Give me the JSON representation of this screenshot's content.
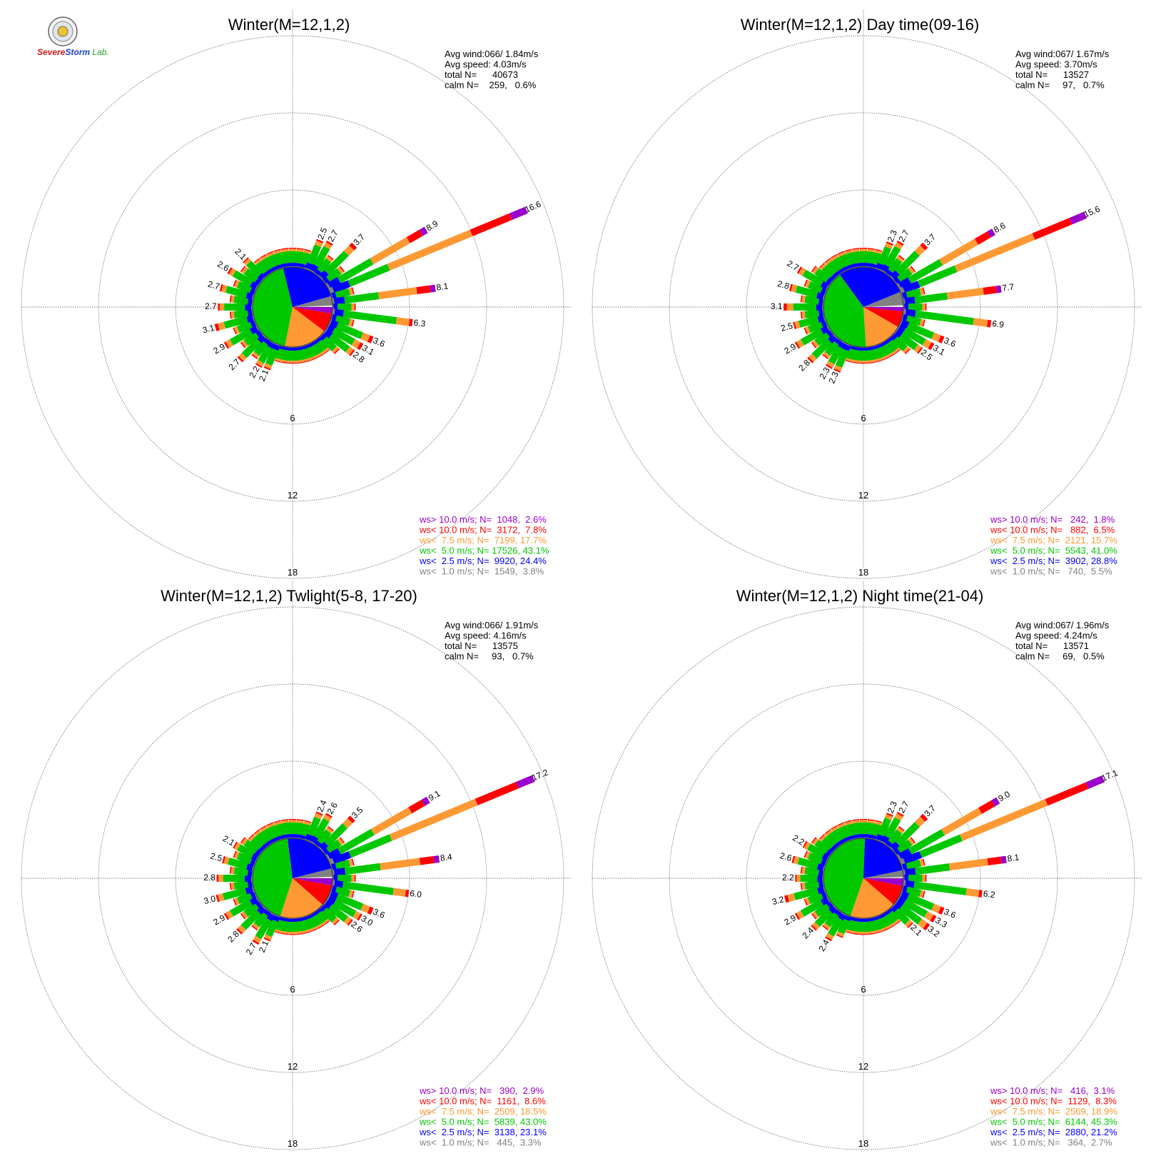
{
  "logo": {
    "name": "severe-storm-lab-logo",
    "text_parts": [
      "Severe",
      "Storm",
      "Lab."
    ]
  },
  "colors": {
    "ws_gt_10": "#9900cc",
    "ws_lt_10": "#ff0000",
    "ws_lt_7_5": "#ff9933",
    "ws_lt_5": "#00c800",
    "ws_lt_2_5": "#0000ff",
    "ws_lt_1": "#808080",
    "ring": "#555555"
  },
  "chart_data": [
    {
      "type": "wind-rose",
      "title": "Winter(M=12,1,2)",
      "stats": [
        "Avg wind:066/ 1.84m/s",
        "Avg speed: 4.03m/s",
        "total N=      40673",
        "calm N=    259,   0.6%"
      ],
      "ring_labels": [
        "6",
        "12",
        "18"
      ],
      "petal_labels": [
        {
          "dir": 22.5,
          "value": "2.5"
        },
        {
          "dir": 30,
          "value": "2.7"
        },
        {
          "dir": 45,
          "value": "3.7"
        },
        {
          "dir": 60,
          "value": "8.9"
        },
        {
          "dir": 67.5,
          "value": "16.6"
        },
        {
          "dir": 82.5,
          "value": "8.1"
        },
        {
          "dir": 97.5,
          "value": "6.3"
        },
        {
          "dir": 112.5,
          "value": "3.6"
        },
        {
          "dir": 120,
          "value": "3.1"
        },
        {
          "dir": 127.5,
          "value": "2.8"
        },
        {
          "dir": 202.5,
          "value": "2.1"
        },
        {
          "dir": 210,
          "value": "2.2"
        },
        {
          "dir": 225,
          "value": "2.7"
        },
        {
          "dir": 240,
          "value": "2.9"
        },
        {
          "dir": 255,
          "value": "3.1"
        },
        {
          "dir": 270,
          "value": "2.7"
        },
        {
          "dir": 285,
          "value": "2.7"
        },
        {
          "dir": 300,
          "value": "2.6"
        },
        {
          "dir": 315,
          "value": "2.1"
        }
      ],
      "pie_pct": [
        2.6,
        7.8,
        17.7,
        43.1,
        24.4,
        3.8
      ],
      "legend": [
        {
          "label": "ws> 10.0 m/s; N=  1048,  2.6%",
          "color": "ws_gt_10"
        },
        {
          "label": "ws< 10.0 m/s; N=  3172,  7.8%",
          "color": "ws_lt_10"
        },
        {
          "label": "ws<  7.5 m/s; N=  7199, 17.7%",
          "color": "ws_lt_7_5"
        },
        {
          "label": "ws<  5.0 m/s; N= 17526, 43.1%",
          "color": "ws_lt_5"
        },
        {
          "label": "ws<  2.5 m/s; N=  9920, 24.4%",
          "color": "ws_lt_2_5"
        },
        {
          "label": "ws<  1.0 m/s; N=  1549,  3.8%",
          "color": "ws_lt_1"
        }
      ]
    },
    {
      "type": "wind-rose",
      "title": "Winter(M=12,1,2) Day time(09-16)",
      "stats": [
        "Avg wind:067/ 1.67m/s",
        "Avg speed: 3.70m/s",
        "total N=      13527",
        "calm N=     97,   0.7%"
      ],
      "ring_labels": [
        "6",
        "12",
        "18"
      ],
      "petal_labels": [
        {
          "dir": 22.5,
          "value": "2.3"
        },
        {
          "dir": 30,
          "value": "2.7"
        },
        {
          "dir": 45,
          "value": "3.7"
        },
        {
          "dir": 60,
          "value": "8.6"
        },
        {
          "dir": 67.5,
          "value": "15.6"
        },
        {
          "dir": 82.5,
          "value": "7.7"
        },
        {
          "dir": 97.5,
          "value": "6.9"
        },
        {
          "dir": 112.5,
          "value": "3.6"
        },
        {
          "dir": 120,
          "value": "3.1"
        },
        {
          "dir": 127.5,
          "value": "2.5"
        },
        {
          "dir": 202.5,
          "value": "2.3"
        },
        {
          "dir": 210,
          "value": "2.3"
        },
        {
          "dir": 225,
          "value": "2.8"
        },
        {
          "dir": 240,
          "value": "2.9"
        },
        {
          "dir": 255,
          "value": "2.5"
        },
        {
          "dir": 270,
          "value": "3.1"
        },
        {
          "dir": 285,
          "value": "2.8"
        },
        {
          "dir": 300,
          "value": "2.7"
        }
      ],
      "pie_pct": [
        1.8,
        6.5,
        15.7,
        41.0,
        28.8,
        5.5
      ],
      "legend": [
        {
          "label": "ws> 10.0 m/s; N=   242,  1.8%",
          "color": "ws_gt_10"
        },
        {
          "label": "ws< 10.0 m/s; N=   882,  6.5%",
          "color": "ws_lt_10"
        },
        {
          "label": "ws<  7.5 m/s; N=  2121, 15.7%",
          "color": "ws_lt_7_5"
        },
        {
          "label": "ws<  5.0 m/s; N=  5543, 41.0%",
          "color": "ws_lt_5"
        },
        {
          "label": "ws<  2.5 m/s; N=  3902, 28.8%",
          "color": "ws_lt_2_5"
        },
        {
          "label": "ws<  1.0 m/s; N=   740,  5.5%",
          "color": "ws_lt_1"
        }
      ]
    },
    {
      "type": "wind-rose",
      "title": "Winter(M=12,1,2) Twlight(5-8, 17-20)",
      "stats": [
        "Avg wind:066/ 1.91m/s",
        "Avg speed: 4.16m/s",
        "total N=      13575",
        "calm N=     93,   0.7%"
      ],
      "ring_labels": [
        "6",
        "12",
        "18"
      ],
      "petal_labels": [
        {
          "dir": 22.5,
          "value": "2.4"
        },
        {
          "dir": 30,
          "value": "2.6"
        },
        {
          "dir": 45,
          "value": "3.5"
        },
        {
          "dir": 60,
          "value": "9.1"
        },
        {
          "dir": 67.5,
          "value": "17.2"
        },
        {
          "dir": 82.5,
          "value": "8.4"
        },
        {
          "dir": 97.5,
          "value": "6.0"
        },
        {
          "dir": 112.5,
          "value": "3.6"
        },
        {
          "dir": 120,
          "value": "3.0"
        },
        {
          "dir": 127.5,
          "value": "2.6"
        },
        {
          "dir": 202.5,
          "value": "2.1"
        },
        {
          "dir": 210,
          "value": "2.7"
        },
        {
          "dir": 225,
          "value": "2.8"
        },
        {
          "dir": 240,
          "value": "2.9"
        },
        {
          "dir": 255,
          "value": "3.0"
        },
        {
          "dir": 270,
          "value": "2.8"
        },
        {
          "dir": 285,
          "value": "2.5"
        },
        {
          "dir": 300,
          "value": "2.1"
        }
      ],
      "pie_pct": [
        2.9,
        8.6,
        18.5,
        43.0,
        23.1,
        3.3
      ],
      "legend": [
        {
          "label": "ws> 10.0 m/s; N=   390,  2.9%",
          "color": "ws_gt_10"
        },
        {
          "label": "ws< 10.0 m/s; N=  1161,  8.6%",
          "color": "ws_lt_10"
        },
        {
          "label": "ws<  7.5 m/s; N=  2509, 18.5%",
          "color": "ws_lt_7_5"
        },
        {
          "label": "ws<  5.0 m/s; N=  5839, 43.0%",
          "color": "ws_lt_5"
        },
        {
          "label": "ws<  2.5 m/s; N=  3138, 23.1%",
          "color": "ws_lt_2_5"
        },
        {
          "label": "ws<  1.0 m/s; N=   445,  3.3%",
          "color": "ws_lt_1"
        }
      ]
    },
    {
      "type": "wind-rose",
      "title": "Winter(M=12,1,2) Night time(21-04)",
      "stats": [
        "Avg wind:067/ 1.96m/s",
        "Avg speed: 4.24m/s",
        "total N=      13571",
        "calm N=     69,   0.5%"
      ],
      "ring_labels": [
        "6",
        "12",
        "18"
      ],
      "petal_labels": [
        {
          "dir": 22.5,
          "value": "2.3"
        },
        {
          "dir": 30,
          "value": "2.7"
        },
        {
          "dir": 45,
          "value": "3.7"
        },
        {
          "dir": 60,
          "value": "9.0"
        },
        {
          "dir": 67.5,
          "value": "17.1"
        },
        {
          "dir": 82.5,
          "value": "8.1"
        },
        {
          "dir": 97.5,
          "value": "6.2"
        },
        {
          "dir": 112.5,
          "value": "3.6"
        },
        {
          "dir": 120,
          "value": "3.3"
        },
        {
          "dir": 127.5,
          "value": "3.2"
        },
        {
          "dir": 135,
          "value": "2.1"
        },
        {
          "dir": 210,
          "value": "2.4"
        },
        {
          "dir": 225,
          "value": "2.4"
        },
        {
          "dir": 240,
          "value": "2.9"
        },
        {
          "dir": 255,
          "value": "3.2"
        },
        {
          "dir": 270,
          "value": "2.2"
        },
        {
          "dir": 285,
          "value": "2.6"
        },
        {
          "dir": 300,
          "value": "2.2"
        }
      ],
      "pie_pct": [
        3.1,
        8.3,
        18.9,
        45.3,
        21.2,
        2.7
      ],
      "legend": [
        {
          "label": "ws> 10.0 m/s; N=   416,  3.1%",
          "color": "ws_gt_10"
        },
        {
          "label": "ws< 10.0 m/s; N=  1129,  8.3%",
          "color": "ws_lt_10"
        },
        {
          "label": "ws<  7.5 m/s; N=  2569, 18.9%",
          "color": "ws_lt_7_5"
        },
        {
          "label": "ws<  5.0 m/s; N=  6144, 45.3%",
          "color": "ws_lt_5"
        },
        {
          "label": "ws<  2.5 m/s; N=  2880, 21.2%",
          "color": "ws_lt_2_5"
        },
        {
          "label": "ws<  1.0 m/s; N=   364,  2.7%",
          "color": "ws_lt_1"
        }
      ]
    }
  ]
}
